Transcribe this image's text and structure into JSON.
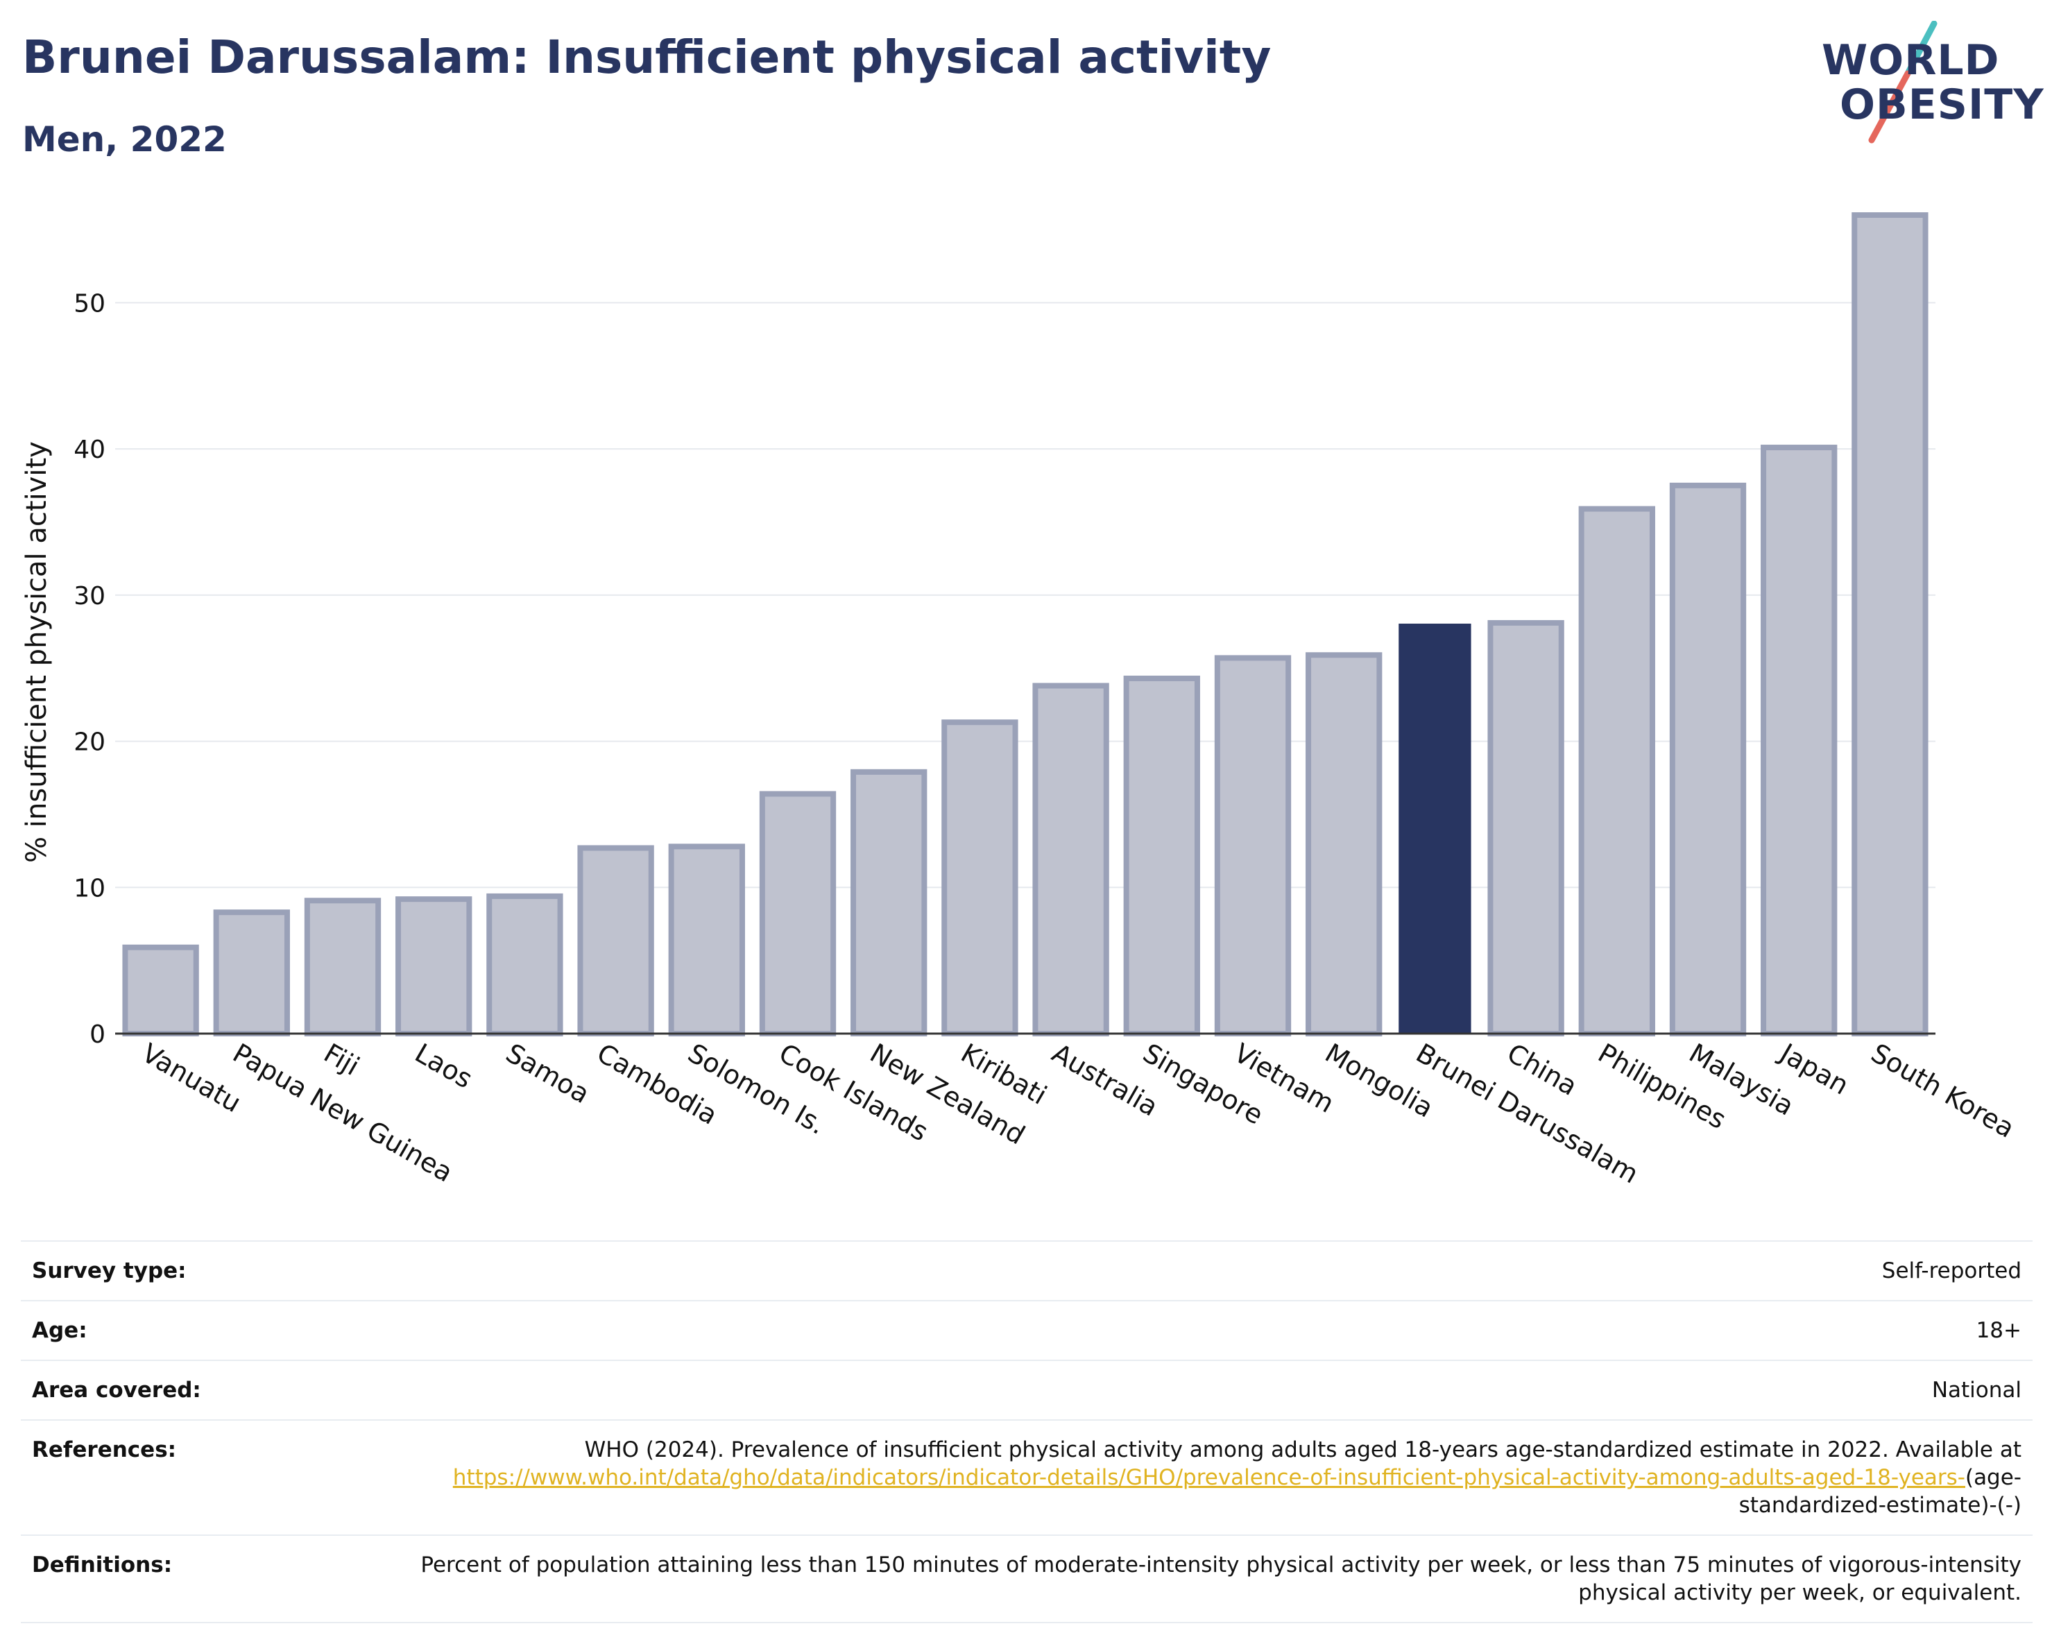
{
  "header": {
    "title": "Brunei Darussalam: Insufficient physical activity",
    "subtitle": "Men, 2022"
  },
  "logo": {
    "line1": "WORLD",
    "line2": "OBESITY",
    "colors": {
      "text": "#283561",
      "slash_top": "#4bbfc0",
      "slash_bottom": "#e5675c"
    }
  },
  "chart_data": {
    "type": "bar",
    "title": "",
    "xlabel": "",
    "ylabel": "% insufficient physical activity",
    "ylim": [
      0,
      56
    ],
    "yticks": [
      0,
      10,
      20,
      30,
      40,
      50
    ],
    "grid": true,
    "highlight": "Brunei Darussalam",
    "colors": {
      "bar": "#bfc2cf",
      "bar_border": "#9aa1b8",
      "highlight": "#283561",
      "grid": "#e6e9ee"
    },
    "categories": [
      "Vanuatu",
      "Papua New Guinea",
      "Fiji",
      "Laos",
      "Samoa",
      "Cambodia",
      "Solomon Is.",
      "Cook Islands",
      "New Zealand",
      "Kiribati",
      "Australia",
      "Singapore",
      "Vietnam",
      "Mongolia",
      "Brunei Darussalam",
      "China",
      "Philippines",
      "Malaysia",
      "Japan",
      "South Korea"
    ],
    "values": [
      5.9,
      8.3,
      9.1,
      9.2,
      9.4,
      12.7,
      12.8,
      16.4,
      17.9,
      21.3,
      23.8,
      24.3,
      25.7,
      25.9,
      28.0,
      28.1,
      35.9,
      37.5,
      40.1,
      56.0
    ]
  },
  "info": [
    {
      "label": "Survey type:",
      "value": "Self-reported"
    },
    {
      "label": "Age:",
      "value": "18+"
    },
    {
      "label": "Area covered:",
      "value": "National"
    },
    {
      "label": "References:",
      "value_prefix": "WHO (2024). Prevalence of insufficient physical activity among adults aged 18-years age-standardized estimate in 2022. Available at",
      "link": "https://www.who.int/data/gho/data/indicators/indicator-details/GHO/prevalence-of-insufficient-physical-activity-among-adults-aged-18-years-",
      "value_suffix": "(age-standardized-estimate)-(-)"
    },
    {
      "label": "Definitions:",
      "value": "Percent of population attaining less than 150 minutes of moderate-intensity physical activity per week, or less than 75 minutes of vigorous-intensity physical activity per week, or equivalent."
    }
  ]
}
